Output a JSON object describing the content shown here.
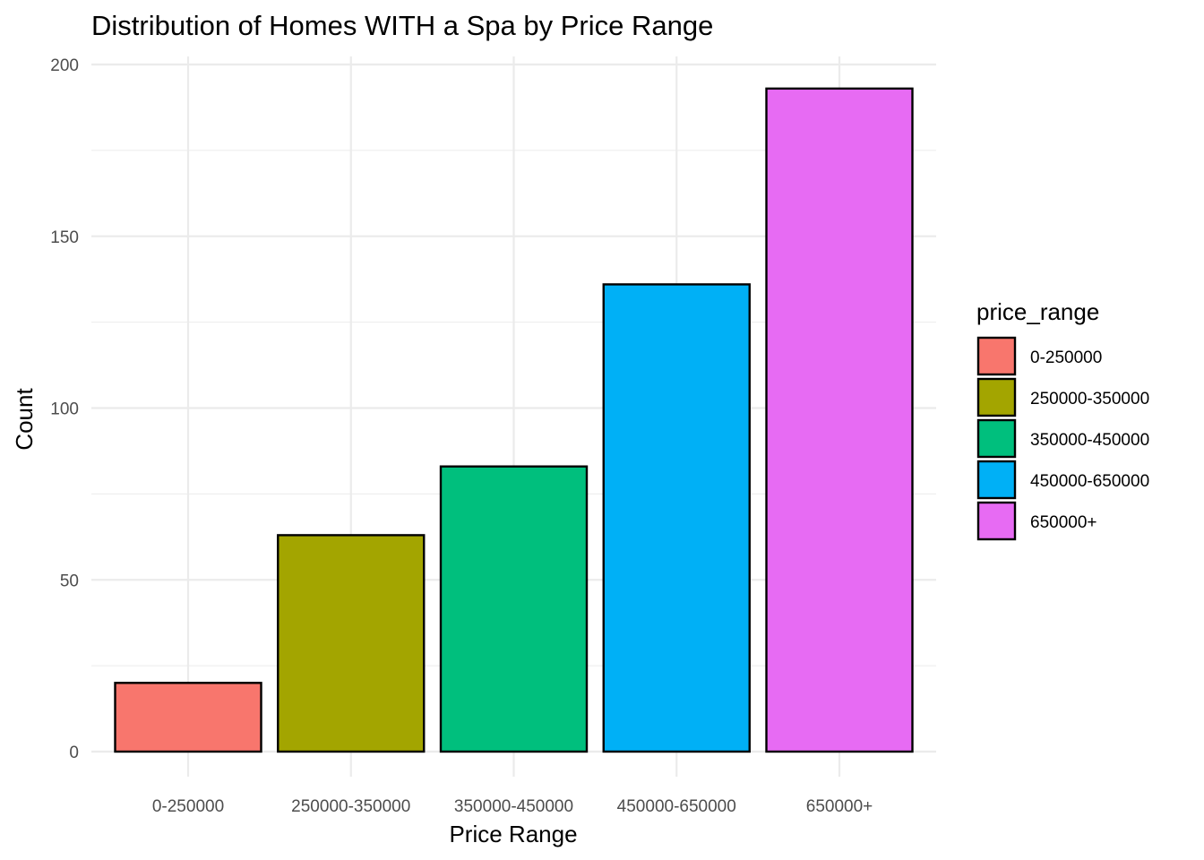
{
  "chart_data": {
    "type": "bar",
    "title": "Distribution of Homes WITH a Spa by Price Range",
    "xlabel": "Price Range",
    "ylabel": "Count",
    "categories": [
      "0-250000",
      "250000-350000",
      "350000-450000",
      "450000-650000",
      "650000+"
    ],
    "values": [
      20,
      63,
      83,
      136,
      193
    ],
    "colors": [
      "#F8766D",
      "#A3A500",
      "#00BF7D",
      "#00B0F6",
      "#E76BF3"
    ],
    "ylim": [
      0,
      205
    ],
    "yticks": [
      0,
      50,
      100,
      150,
      200
    ],
    "grid": true,
    "legend": {
      "title": "price_range",
      "position": "right",
      "entries": [
        "0-250000",
        "250000-350000",
        "350000-450000",
        "450000-650000",
        "650000+"
      ]
    }
  }
}
